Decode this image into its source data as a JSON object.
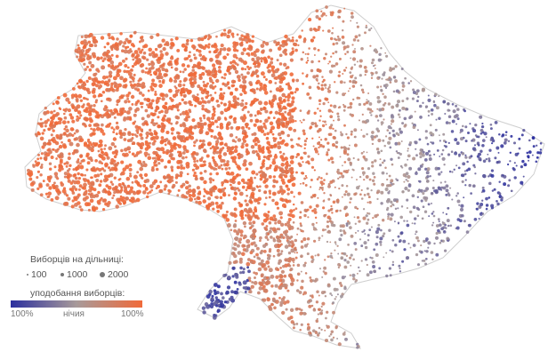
{
  "map": {
    "colors": {
      "low": "#2b2f9e",
      "mid": "#a89a9a",
      "high": "#f06a3a",
      "border": "#cfcfcf",
      "background": "#ffffff"
    },
    "legend": {
      "size_title": "Виборців на дільниці:",
      "size_items": [
        {
          "label": "100",
          "value": 100
        },
        {
          "label": "1000",
          "value": 1000
        },
        {
          "label": "2000",
          "value": 2000
        }
      ],
      "color_title": "уподобання виборців:",
      "color_left_label": "100%",
      "color_mid_label": "нічия",
      "color_right_label": "100%"
    }
  }
}
